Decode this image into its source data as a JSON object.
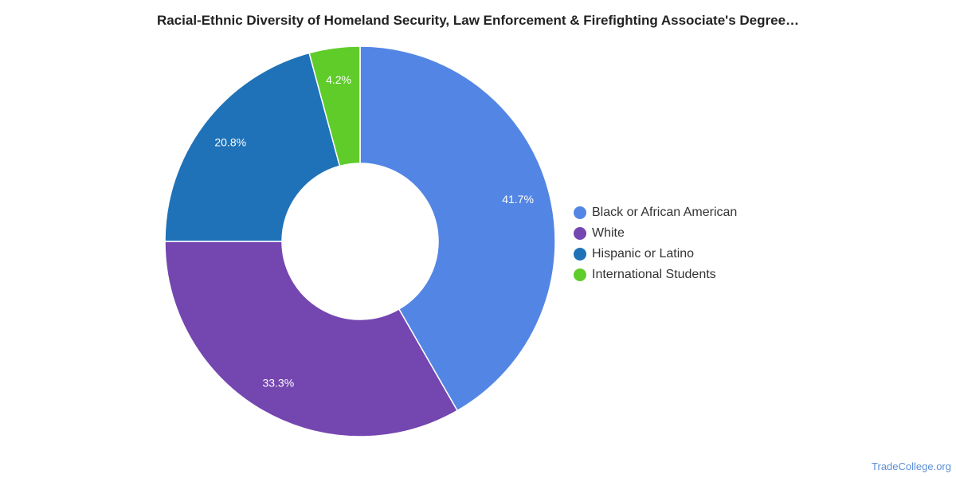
{
  "chart_data": {
    "type": "pie",
    "title": "Racial-Ethnic Diversity of Homeland Security, Law Enforcement & Firefighting Associate's Degree…",
    "slices": [
      {
        "label": "Black or African American",
        "value": 41.7,
        "value_label": "41.7%",
        "color": "#5386e4"
      },
      {
        "label": "White",
        "value": 33.3,
        "value_label": "33.3%",
        "color": "#7446b0"
      },
      {
        "label": "Hispanic or Latino",
        "value": 20.8,
        "value_label": "20.8%",
        "color": "#1f72b8"
      },
      {
        "label": "International Students",
        "value": 4.2,
        "value_label": "4.2%",
        "color": "#5fcc2a"
      }
    ],
    "legend_position": "right"
  },
  "watermark": "TradeCollege.org"
}
